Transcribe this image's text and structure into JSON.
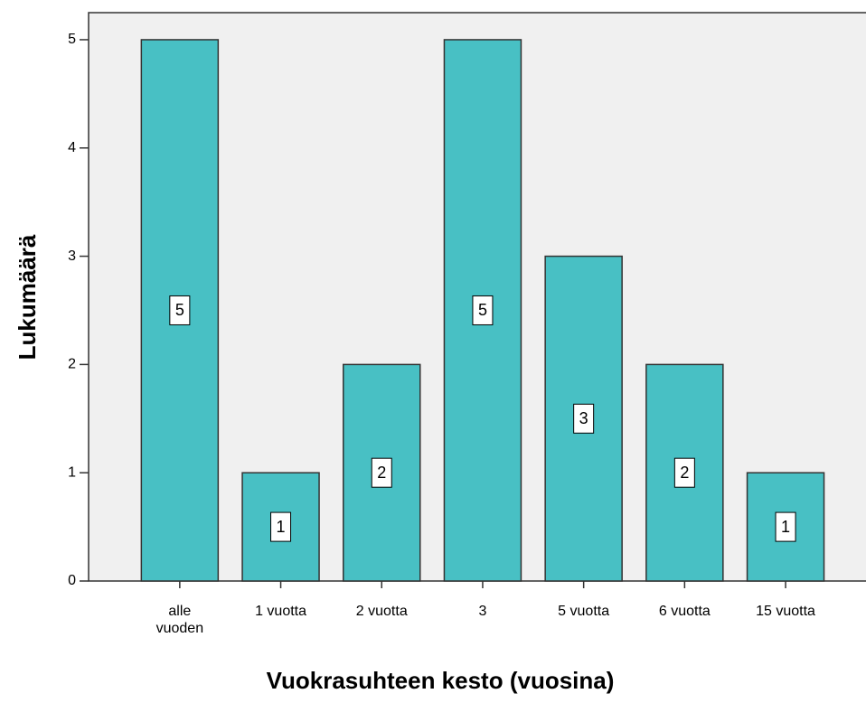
{
  "chart_data": {
    "type": "bar",
    "categories": [
      "alle vuoden",
      "1 vuotta",
      "2 vuotta",
      "3",
      "5 vuotta",
      "6 vuotta",
      "15 vuotta"
    ],
    "values": [
      5,
      1,
      2,
      5,
      3,
      2,
      1
    ],
    "color": "#48c0c4",
    "ylim": [
      0,
      5.25
    ],
    "yticks": [
      0,
      1,
      2,
      3,
      4,
      5
    ],
    "x_label": "Vuokrasuhteen kesto (vuosina)",
    "y_label": "Lukumäärä"
  }
}
